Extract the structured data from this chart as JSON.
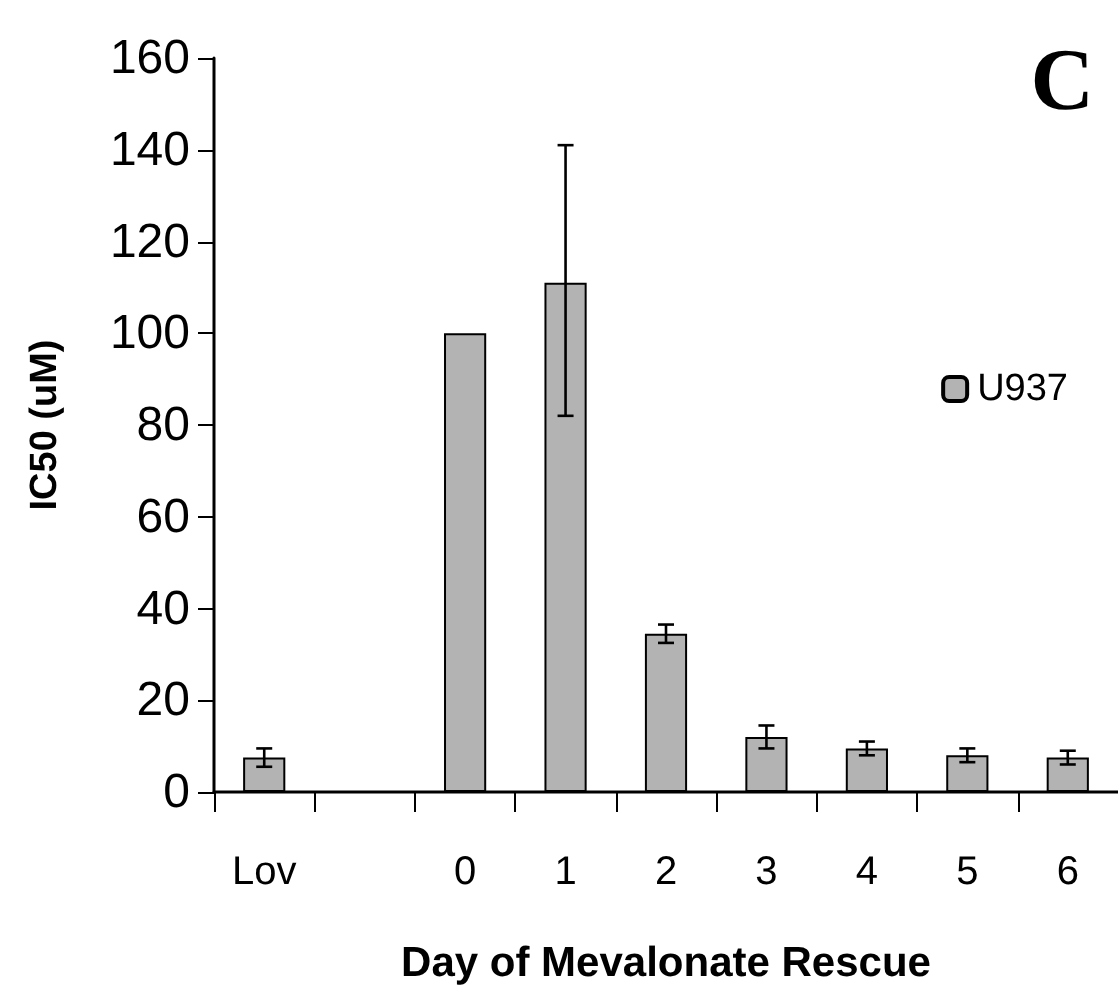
{
  "chart_data": {
    "type": "bar",
    "xlabel": "Day of Mevalonate Rescue",
    "ylabel": "IC50 (uM)",
    "annotations": [
      "C"
    ],
    "categories": [
      "Lov",
      null,
      "0",
      "1",
      "2",
      "3",
      "4",
      "5",
      "6"
    ],
    "series": [
      {
        "name": "U937",
        "color": "#b3b3b3",
        "values": [
          7.5,
          null,
          100,
          111,
          34.5,
          12,
          9.5,
          8,
          7.5
        ],
        "errors": [
          2,
          null,
          null,
          [
            82,
            141
          ],
          2,
          2.5,
          1.5,
          1.5,
          1.5
        ]
      }
    ],
    "ylim": [
      0,
      160
    ],
    "yticks": [
      0,
      20,
      40,
      60,
      80,
      100,
      120,
      140,
      160
    ],
    "grid": false,
    "legend": "right"
  }
}
